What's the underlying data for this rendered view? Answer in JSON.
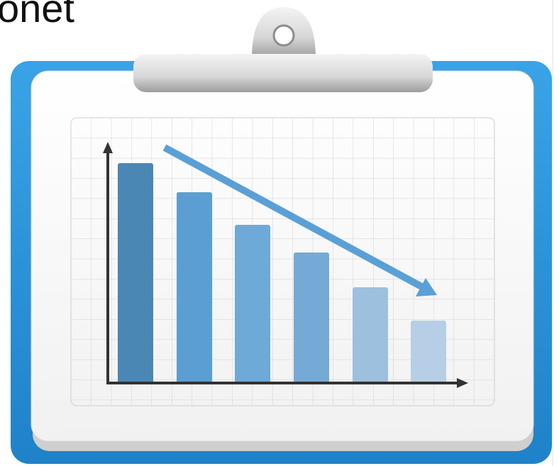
{
  "header": {
    "text": "onet"
  }
}
